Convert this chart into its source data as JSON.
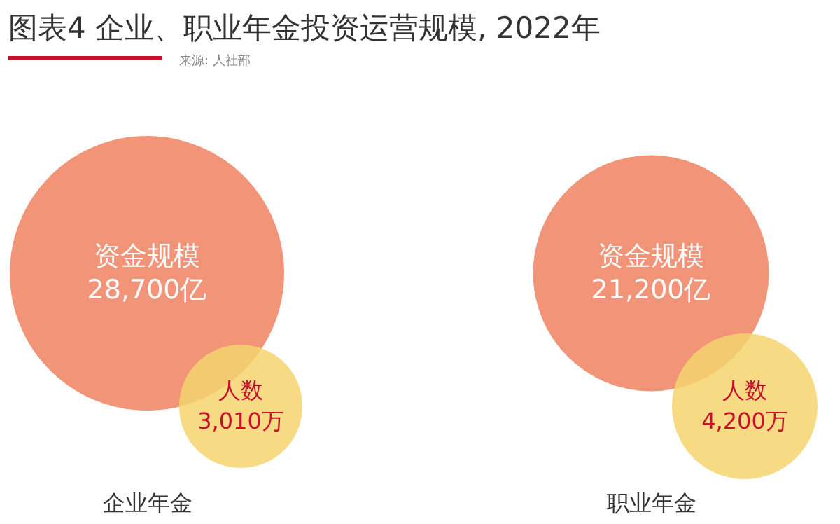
{
  "chart_data": {
    "type": "other",
    "title": "图表4 企业、职业年金投资运营规模, 2022年",
    "annotations": [
      "来源: 人社部"
    ],
    "categories": [
      "企业年金",
      "职业年金"
    ],
    "series": [
      {
        "name": "资金规模",
        "color": "#f29478",
        "values": [
          28700,
          21200
        ],
        "value_labels": [
          "28,700亿",
          "21,200亿"
        ]
      },
      {
        "name": "人数",
        "color": "#f5d46e",
        "values": [
          3010,
          4200
        ],
        "value_labels": [
          "3,010万",
          "4,200万"
        ]
      }
    ]
  }
}
